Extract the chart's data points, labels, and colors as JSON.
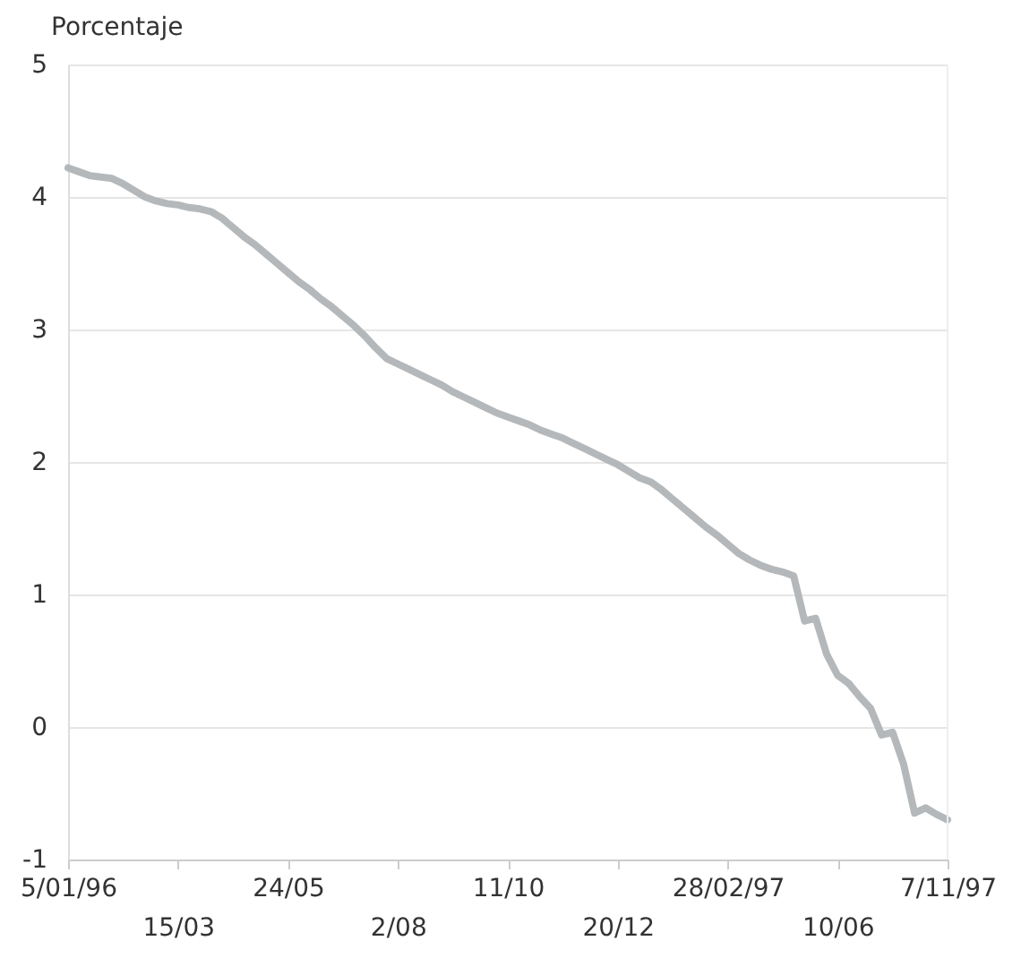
{
  "chart_data": {
    "type": "line",
    "ylabel": "Porcentaje",
    "categories": [
      "5/01/96",
      null,
      null,
      null,
      null,
      null,
      null,
      null,
      null,
      null,
      "15/03",
      null,
      null,
      null,
      null,
      null,
      null,
      null,
      null,
      null,
      "24/05",
      null,
      null,
      null,
      null,
      null,
      null,
      null,
      null,
      null,
      "2/08",
      null,
      null,
      null,
      null,
      null,
      null,
      null,
      null,
      null,
      "11/10",
      null,
      null,
      null,
      null,
      null,
      null,
      null,
      null,
      null,
      "20/12",
      null,
      null,
      null,
      null,
      null,
      null,
      null,
      null,
      null,
      "28/02/97",
      null,
      null,
      null,
      null,
      null,
      null,
      null,
      null,
      null,
      "10/06",
      null,
      null,
      null,
      null,
      null,
      null,
      null,
      null,
      null,
      "7/11/97"
    ],
    "series": [
      {
        "color": "#b4b8ba",
        "values": [
          4.22,
          4.19,
          4.16,
          4.15,
          4.14,
          4.1,
          4.05,
          4.0,
          3.97,
          3.95,
          3.94,
          3.92,
          3.91,
          3.89,
          3.84,
          3.77,
          3.7,
          3.64,
          3.57,
          3.5,
          3.43,
          3.36,
          3.3,
          3.23,
          3.17,
          3.1,
          3.03,
          2.95,
          2.86,
          2.78,
          2.74,
          2.7,
          2.66,
          2.62,
          2.58,
          2.53,
          2.49,
          2.45,
          2.41,
          2.37,
          2.34,
          2.31,
          2.28,
          2.24,
          2.21,
          2.18,
          2.14,
          2.1,
          2.06,
          2.02,
          1.98,
          1.93,
          1.88,
          1.85,
          1.79,
          1.72,
          1.65,
          1.58,
          1.51,
          1.45,
          1.38,
          1.31,
          1.26,
          1.22,
          1.19,
          1.17,
          1.14,
          0.8,
          0.82,
          0.55,
          0.39,
          0.33,
          0.23,
          0.14,
          -0.06,
          -0.04,
          -0.28,
          -0.65,
          -0.61,
          -0.66,
          -0.7
        ]
      }
    ],
    "ylim": [
      -1,
      5
    ],
    "yticks": [
      -1,
      0,
      1,
      2,
      3,
      4,
      5
    ],
    "grid": "y",
    "marker": "none",
    "line_style": "solid"
  }
}
